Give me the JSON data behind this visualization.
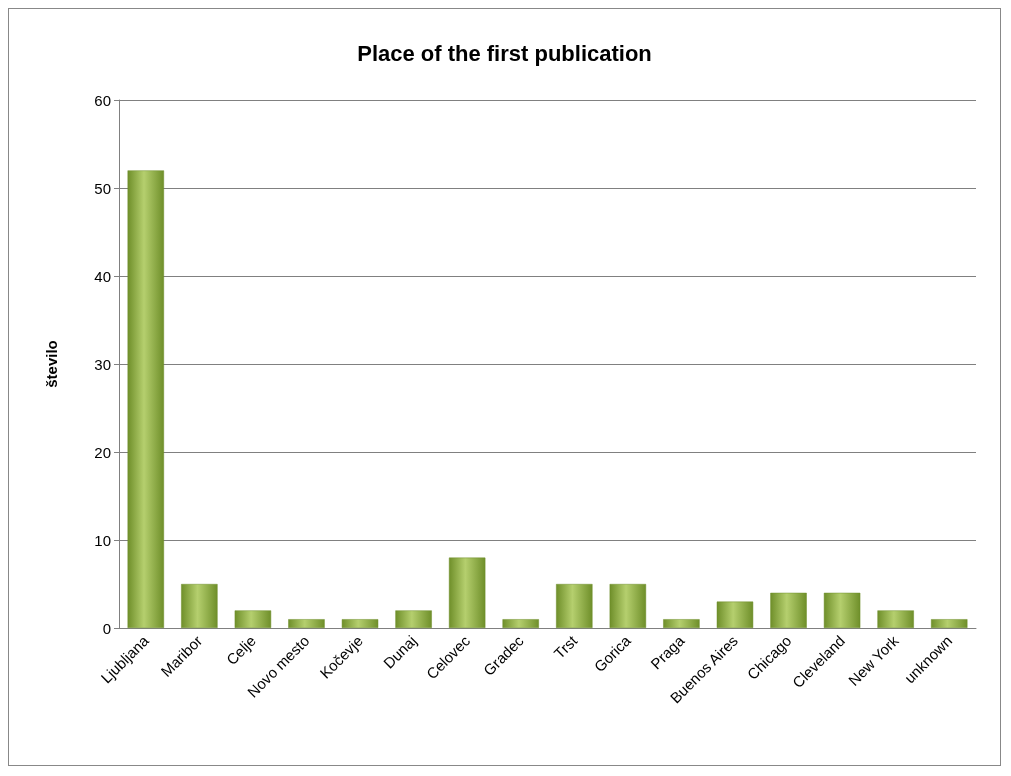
{
  "chart_data": {
    "type": "bar",
    "title": "Place of the first publication",
    "ylabel": "število",
    "categories": [
      "Ljubljana",
      "Maribor",
      "Celje",
      "Novo mesto",
      "Kočevje",
      "Dunaj",
      "Celovec",
      "Gradec",
      "Trst",
      "Gorica",
      "Praga",
      "Buenos Aires",
      "Chicago",
      "Cleveland",
      "New York",
      "unknown"
    ],
    "values": [
      52,
      5,
      2,
      1,
      1,
      2,
      8,
      1,
      5,
      5,
      1,
      3,
      4,
      4,
      2,
      1
    ],
    "color": "#6f8f2a",
    "ylim": [
      0,
      60
    ],
    "yticks": [
      0,
      10,
      20,
      30,
      40,
      50,
      60
    ],
    "grid": "y"
  }
}
